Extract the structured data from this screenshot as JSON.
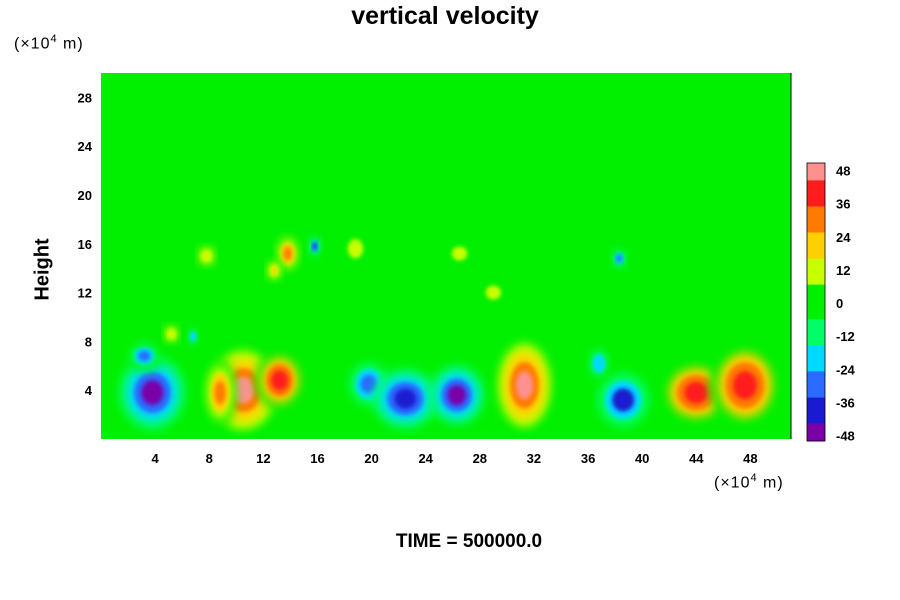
{
  "chart_data": {
    "type": "heatmap",
    "title": "vertical velocity",
    "ylabel": "Height",
    "y_unit": {
      "prefix": "(×10",
      "exp": "4",
      "suffix": " m)"
    },
    "x_unit": {
      "prefix": "(×10",
      "exp": "4",
      "suffix": " m)"
    },
    "xlim": [
      0,
      51
    ],
    "ylim": [
      0,
      30
    ],
    "xticks": [
      4,
      8,
      12,
      16,
      20,
      24,
      28,
      32,
      36,
      40,
      44,
      48
    ],
    "yticks": [
      4,
      8,
      12,
      16,
      20,
      24,
      28
    ],
    "zlim": [
      -48,
      48
    ],
    "colorbar_ticks": [
      48,
      36,
      24,
      12,
      0,
      -12,
      -24,
      -36,
      -48
    ],
    "colorscale": [
      "#7a00a8",
      "#1a1ad0",
      "#2b6bff",
      "#00d9ff",
      "#00ff66",
      "#00f000",
      "#c8ff00",
      "#ffd000",
      "#ff7a00",
      "#ff1c1c",
      "#ff9090"
    ],
    "features": [
      {
        "x": 3.8,
        "y": 3.8,
        "rx": 2.4,
        "ry": 3.0,
        "w": -48
      },
      {
        "x": 3.2,
        "y": 6.8,
        "rx": 1.3,
        "ry": 1.2,
        "w": -30
      },
      {
        "x": 10.5,
        "y": 4.0,
        "rx": 2.4,
        "ry": 3.2,
        "w": 44
      },
      {
        "x": 13.2,
        "y": 4.8,
        "rx": 1.8,
        "ry": 2.4,
        "w": 36
      },
      {
        "x": 8.8,
        "y": 3.8,
        "rx": 1.2,
        "ry": 2.8,
        "w": 26
      },
      {
        "x": 19.8,
        "y": 4.5,
        "rx": 1.8,
        "ry": 2.2,
        "w": -26
      },
      {
        "x": 22.5,
        "y": 3.3,
        "rx": 2.4,
        "ry": 2.4,
        "w": -42
      },
      {
        "x": 26.3,
        "y": 3.6,
        "rx": 2.0,
        "ry": 2.4,
        "w": -44
      },
      {
        "x": 31.3,
        "y": 4.4,
        "rx": 1.9,
        "ry": 3.4,
        "w": 46
      },
      {
        "x": 38.6,
        "y": 3.2,
        "rx": 2.4,
        "ry": 2.8,
        "w": -34
      },
      {
        "x": 36.8,
        "y": 6.2,
        "rx": 0.8,
        "ry": 1.4,
        "w": -24
      },
      {
        "x": 44.0,
        "y": 3.8,
        "rx": 2.6,
        "ry": 2.6,
        "w": 38
      },
      {
        "x": 47.6,
        "y": 4.4,
        "rx": 2.6,
        "ry": 3.4,
        "w": 40
      },
      {
        "x": 13.8,
        "y": 15.2,
        "rx": 0.9,
        "ry": 1.6,
        "w": 30
      },
      {
        "x": 12.8,
        "y": 13.8,
        "rx": 0.6,
        "ry": 0.9,
        "w": 18
      },
      {
        "x": 15.8,
        "y": 15.8,
        "rx": 0.5,
        "ry": 1.0,
        "w": -34
      },
      {
        "x": 7.8,
        "y": 15.0,
        "rx": 0.7,
        "ry": 0.9,
        "w": 14
      },
      {
        "x": 18.8,
        "y": 15.6,
        "rx": 1.0,
        "ry": 1.4,
        "w": 8
      },
      {
        "x": 26.5,
        "y": 15.2,
        "rx": 1.0,
        "ry": 1.0,
        "w": 10
      },
      {
        "x": 29.0,
        "y": 12.0,
        "rx": 1.0,
        "ry": 1.0,
        "w": 8
      },
      {
        "x": 38.3,
        "y": 14.8,
        "rx": 0.6,
        "ry": 0.9,
        "w": -26
      },
      {
        "x": 5.2,
        "y": 8.6,
        "rx": 0.6,
        "ry": 0.8,
        "w": 14
      },
      {
        "x": 6.8,
        "y": 8.4,
        "rx": 0.4,
        "ry": 0.8,
        "w": -22
      }
    ]
  },
  "time_label": "TIME = 500000.0"
}
